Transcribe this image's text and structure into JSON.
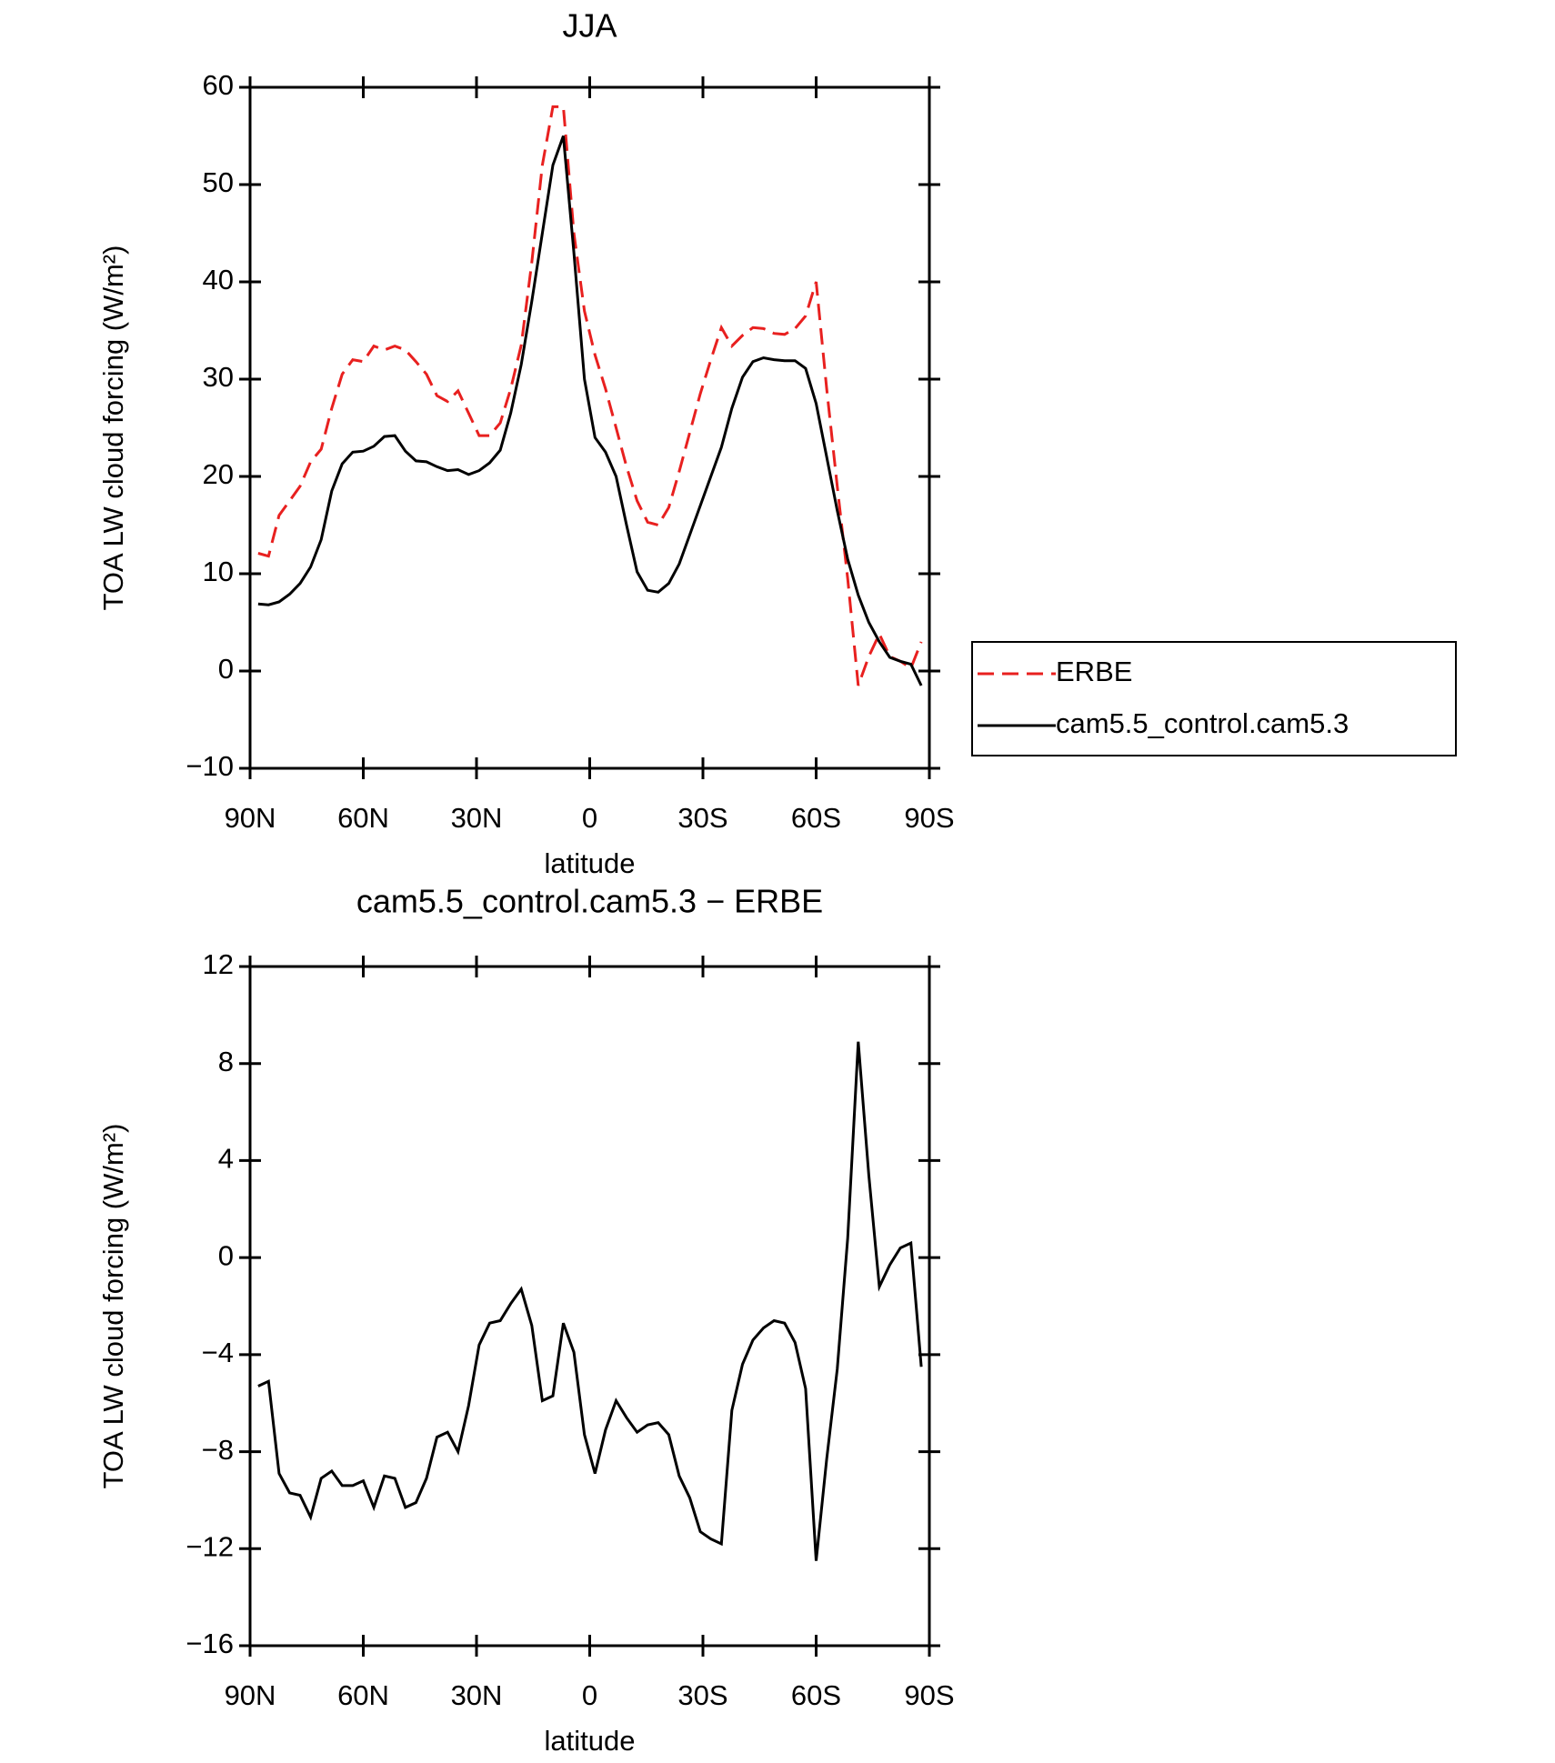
{
  "chart_data": [
    {
      "type": "line",
      "title": "JJA",
      "xlabel": "latitude",
      "ylabel": "TOA LW cloud forcing (W/m²)",
      "x": [
        87.86,
        85.1,
        82.31,
        79.53,
        76.74,
        73.95,
        71.16,
        68.37,
        65.58,
        62.79,
        60.0,
        57.21,
        54.42,
        51.63,
        48.84,
        46.05,
        43.26,
        40.47,
        37.67,
        34.88,
        32.09,
        29.3,
        26.51,
        23.72,
        20.93,
        18.14,
        15.35,
        12.56,
        9.77,
        6.98,
        4.19,
        1.4,
        -1.4,
        -4.19,
        -6.98,
        -9.77,
        -12.56,
        -15.35,
        -18.14,
        -20.93,
        -23.72,
        -26.51,
        -29.3,
        -32.09,
        -34.88,
        -37.67,
        -40.47,
        -43.26,
        -46.05,
        -48.84,
        -51.63,
        -54.42,
        -57.21,
        -60.0,
        -62.79,
        -65.58,
        -68.37,
        -71.16,
        -73.95,
        -76.74,
        -79.53,
        -82.31,
        -85.1,
        -87.86
      ],
      "series": [
        {
          "name": "ERBE",
          "color": "#e8201f",
          "linestyle": "dashed",
          "values": [
            12.1,
            11.8,
            16,
            17.5,
            19,
            21.5,
            22.8,
            27,
            30.5,
            32,
            31.8,
            33.4,
            33,
            33.4,
            33,
            31.8,
            30.5,
            28.3,
            27.7,
            28.8,
            26.5,
            24.2,
            24.2,
            25.5,
            29,
            33.5,
            42,
            52,
            58,
            58,
            45,
            37,
            32.5,
            29,
            25,
            21,
            17.5,
            15.3,
            15,
            16.8,
            20.5,
            24.5,
            28.5,
            32,
            35.3,
            33.4,
            34.5,
            35.3,
            35.2,
            34.7,
            34.6,
            35.2,
            36.5,
            40,
            29,
            19,
            9.5,
            -1.5,
            1.5,
            3.8,
            1.5,
            1.0,
            0.3,
            3.0
          ]
        },
        {
          "name": "cam5.5_control.cam5.3",
          "color": "#000000",
          "linestyle": "solid",
          "values": [
            6.9,
            6.8,
            7.1,
            7.9,
            9.0,
            10.7,
            13.5,
            18.5,
            21.3,
            22.5,
            22.6,
            23.1,
            24.1,
            24.2,
            22.6,
            21.6,
            21.5,
            21.0,
            20.6,
            20.7,
            20.2,
            20.6,
            21.4,
            22.7,
            26.5,
            31.5,
            38,
            45,
            52,
            55,
            43,
            30,
            24,
            22.5,
            20,
            15,
            10.2,
            8.3,
            8.1,
            9,
            11,
            14,
            17,
            20,
            23,
            27,
            30.2,
            31.8,
            32.2,
            32,
            31.9,
            31.9,
            31.1,
            27.5,
            22,
            16.5,
            11.5,
            7.8,
            5.0,
            3.0,
            1.4,
            1.0,
            0.7,
            -1.5
          ]
        }
      ],
      "xlim": [
        90,
        -90
      ],
      "xticks": [
        {
          "value": 90,
          "label": "90N"
        },
        {
          "value": 60,
          "label": "60N"
        },
        {
          "value": 30,
          "label": "30N"
        },
        0,
        {
          "value": -30,
          "label": "30S"
        },
        {
          "value": -60,
          "label": "60S"
        },
        {
          "value": -90,
          "label": "90S"
        }
      ],
      "ylim": [
        -10,
        60
      ],
      "yticks": [
        {
          "value": -10,
          "label": "−10"
        },
        0,
        10,
        20,
        30,
        40,
        50,
        60
      ],
      "legend": "outside-right"
    },
    {
      "type": "line",
      "title": "cam5.5_control.cam5.3 − ERBE",
      "xlabel": "latitude",
      "ylabel": "TOA LW cloud forcing (W/m²)",
      "x": [
        87.86,
        85.1,
        82.31,
        79.53,
        76.74,
        73.95,
        71.16,
        68.37,
        65.58,
        62.79,
        60.0,
        57.21,
        54.42,
        51.63,
        48.84,
        46.05,
        43.26,
        40.47,
        37.67,
        34.88,
        32.09,
        29.3,
        26.51,
        23.72,
        20.93,
        18.14,
        15.35,
        12.56,
        9.77,
        6.98,
        4.19,
        1.4,
        -1.4,
        -4.19,
        -6.98,
        -9.77,
        -12.56,
        -15.35,
        -18.14,
        -20.93,
        -23.72,
        -26.51,
        -29.3,
        -32.09,
        -34.88,
        -37.67,
        -40.47,
        -43.26,
        -46.05,
        -48.84,
        -51.63,
        -54.42,
        -57.21,
        -60.0,
        -62.79,
        -65.58,
        -68.37,
        -71.16,
        -73.95,
        -76.74,
        -79.53,
        -82.31,
        -85.1,
        -87.86
      ],
      "series": [
        {
          "color": "#000000",
          "linestyle": "solid",
          "values": [
            -5.3,
            -5.1,
            -8.9,
            -9.7,
            -9.8,
            -10.7,
            -9.1,
            -8.8,
            -9.4,
            -9.4,
            -9.2,
            -10.3,
            -9.0,
            -9.1,
            -10.3,
            -10.1,
            -9.1,
            -7.4,
            -7.2,
            -8.0,
            -6.1,
            -3.6,
            -2.7,
            -2.6,
            -1.9,
            -1.3,
            -2.8,
            -5.9,
            -5.7,
            -2.7,
            -3.9,
            -7.3,
            -8.9,
            -7.1,
            -5.9,
            -6.6,
            -7.2,
            -6.9,
            -6.8,
            -7.3,
            -9.0,
            -9.9,
            -11.3,
            -11.6,
            -11.8,
            -6.3,
            -4.4,
            -3.4,
            -2.9,
            -2.6,
            -2.7,
            -3.5,
            -5.4,
            -12.5,
            -8.3,
            -4.6,
            0.8,
            8.9,
            3.4,
            -1.2,
            -0.3,
            0.4,
            0.6,
            -4.5
          ]
        }
      ],
      "xlim": [
        90,
        -90
      ],
      "xticks": [
        {
          "value": 90,
          "label": "90N"
        },
        {
          "value": 60,
          "label": "60N"
        },
        {
          "value": 30,
          "label": "30N"
        },
        0,
        {
          "value": -30,
          "label": "30S"
        },
        {
          "value": -60,
          "label": "60S"
        },
        {
          "value": -90,
          "label": "90S"
        }
      ],
      "ylim": [
        -16,
        12
      ],
      "yticks": [
        {
          "value": -16,
          "label": "−16"
        },
        {
          "value": -12,
          "label": "−12"
        },
        {
          "value": -8,
          "label": "−8"
        },
        {
          "value": -4,
          "label": "−4"
        },
        0,
        4,
        8,
        12
      ]
    }
  ]
}
